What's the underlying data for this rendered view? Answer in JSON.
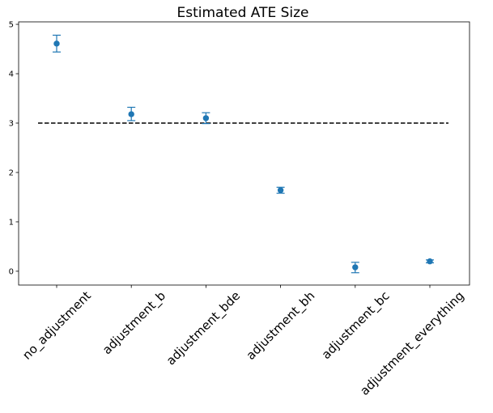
{
  "chart_data": {
    "type": "scatter",
    "title": "Estimated ATE Size",
    "xlabel": "",
    "ylabel": "",
    "categories": [
      "no_adjustment",
      "adjustment_b",
      "adjustment_bde",
      "adjustment_bh",
      "adjustment_bc",
      "adjustment_everything"
    ],
    "values": [
      4.61,
      3.18,
      3.1,
      1.64,
      0.08,
      0.2
    ],
    "error_low": [
      4.44,
      3.05,
      2.99,
      1.58,
      -0.03,
      0.17
    ],
    "error_high": [
      4.78,
      3.32,
      3.21,
      1.7,
      0.18,
      0.23
    ],
    "reference_line": {
      "y": 3.0,
      "style": "dashed",
      "color": "#000000"
    },
    "ylim": [
      -0.28,
      5.05
    ],
    "yticks": [
      0,
      1,
      2,
      3,
      4,
      5
    ],
    "grid": false,
    "legend": "none",
    "colors": {
      "points": "#1f77b4"
    }
  }
}
